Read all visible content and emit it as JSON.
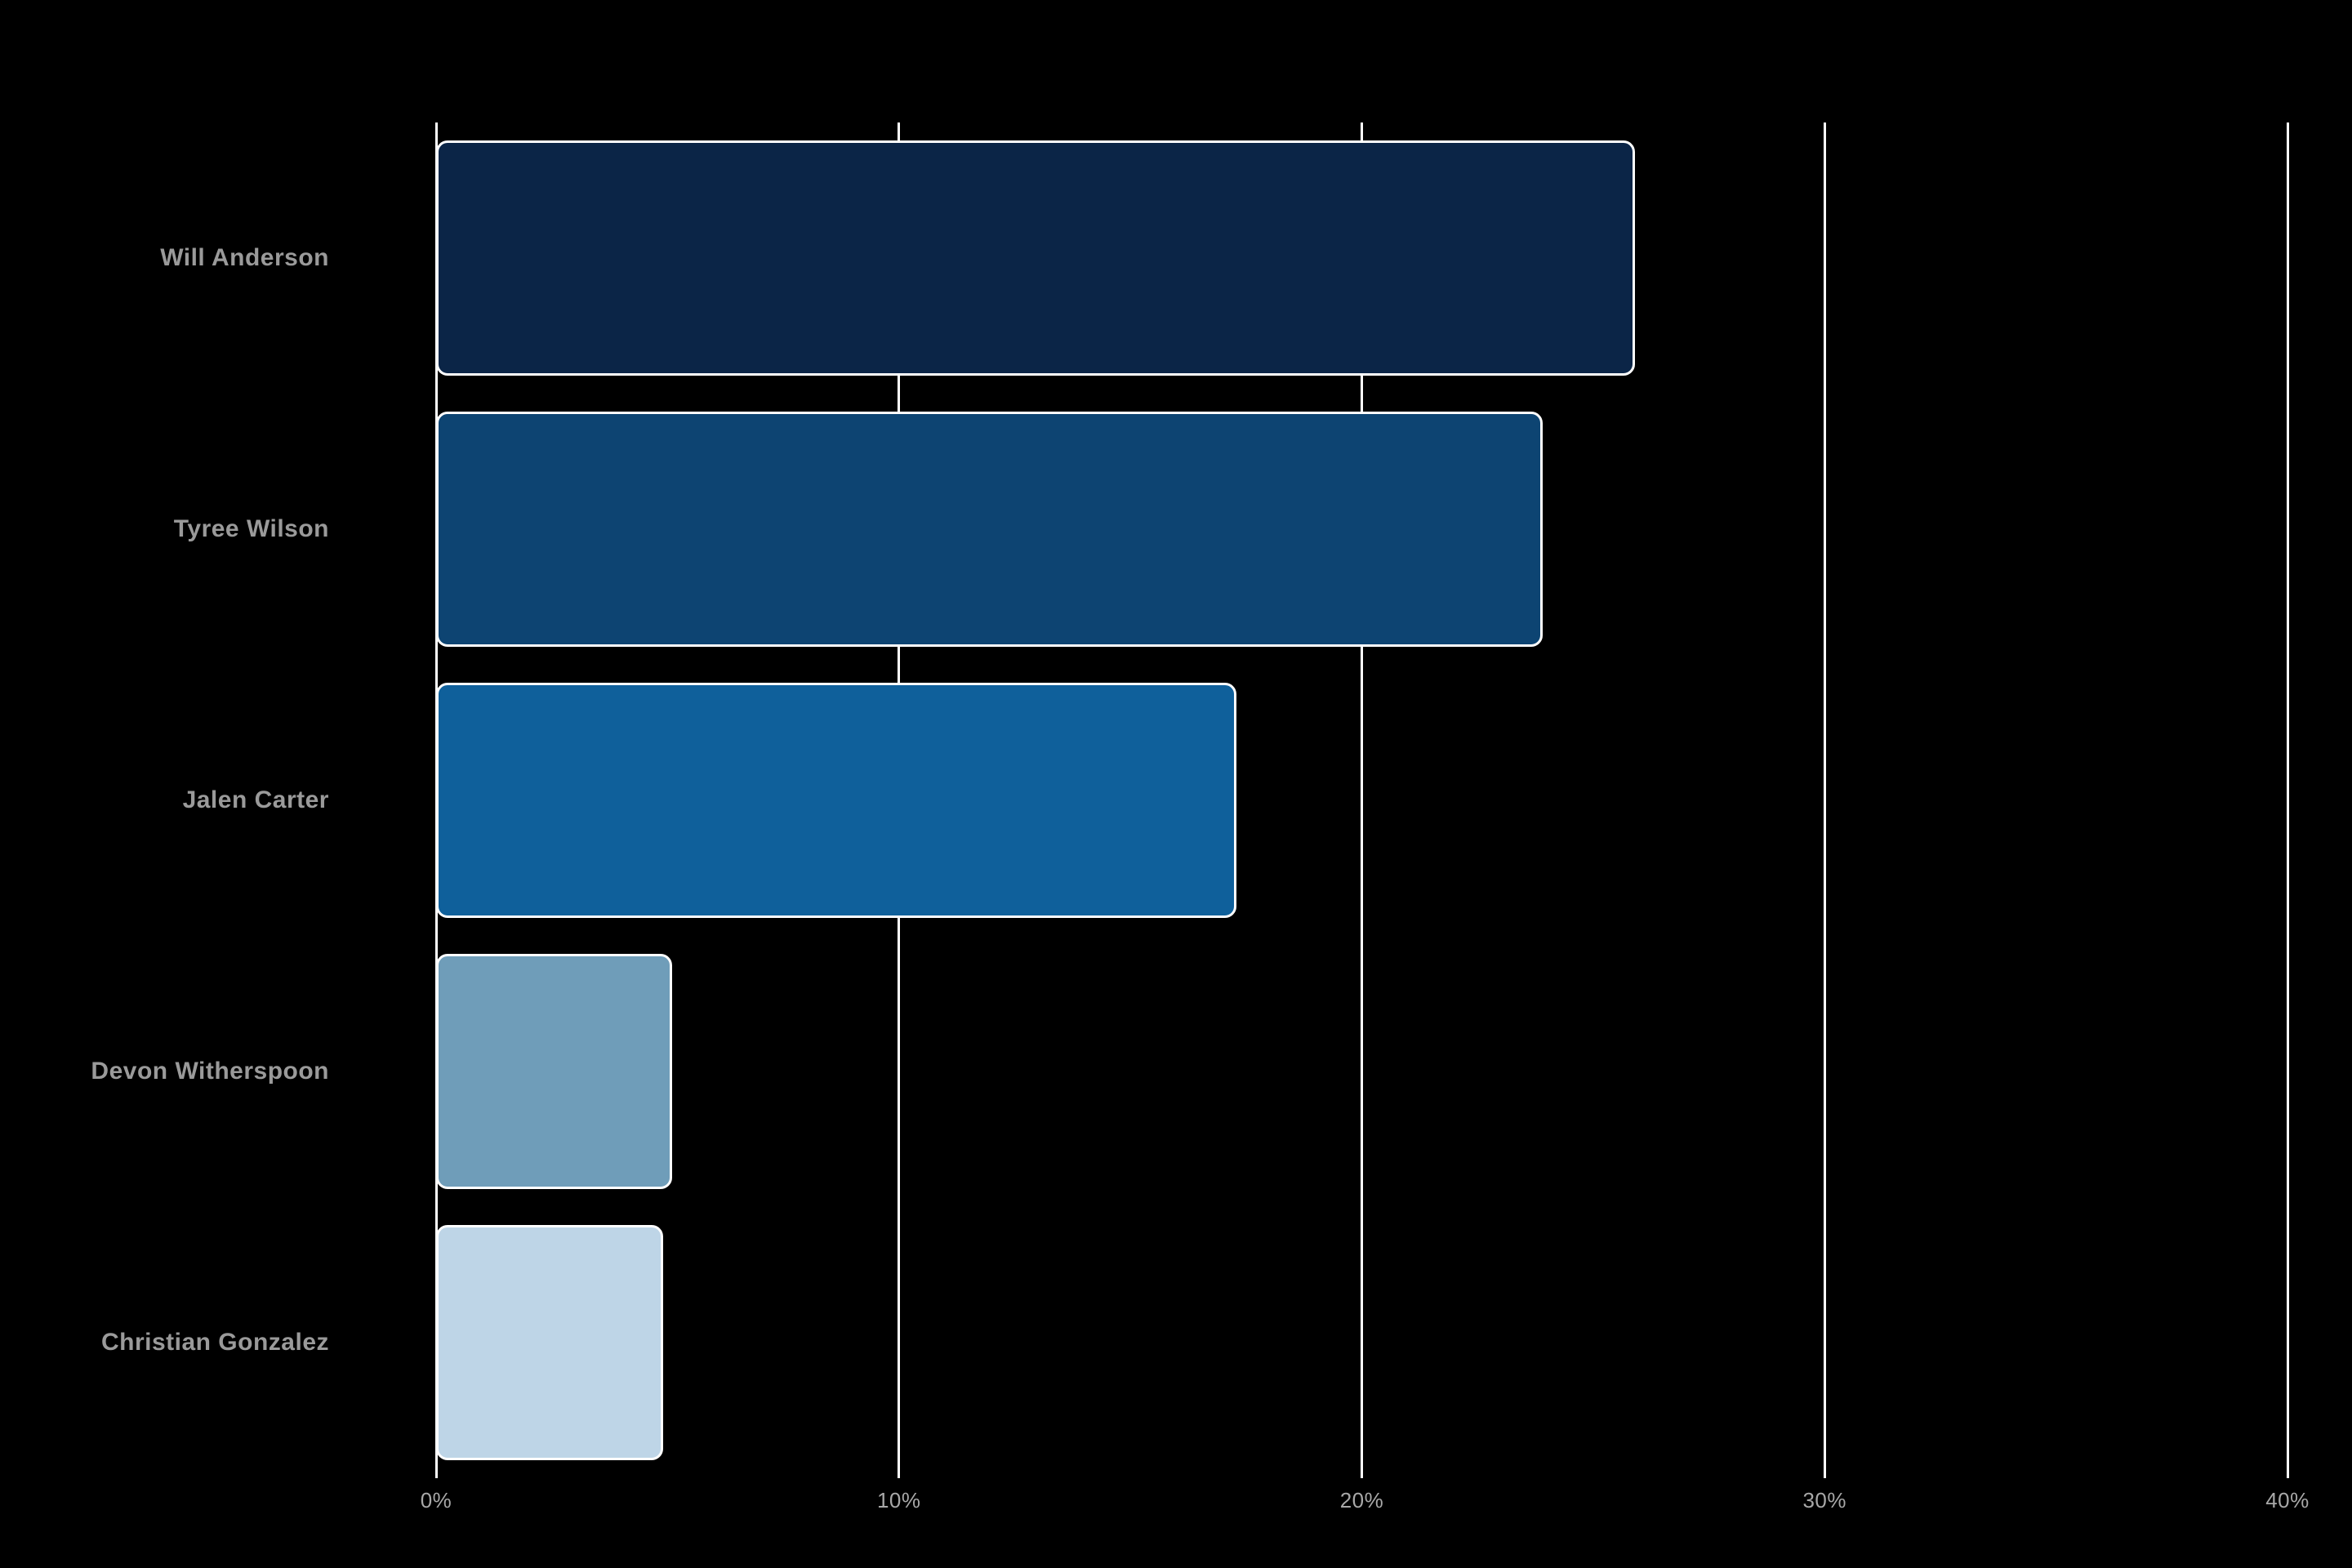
{
  "background": "#000000",
  "chart_data": {
    "type": "bar",
    "orientation": "horizontal",
    "title": "",
    "categories": [
      "Will Anderson",
      "Tyree Wilson",
      "Jalen Carter",
      "Devon Witherspoon",
      "Christian Gonzalez"
    ],
    "values": [
      25.9,
      23.9,
      17.3,
      5.1,
      4.9
    ],
    "unit": "%",
    "xlabel": "",
    "ylabel": "",
    "xlim": [
      0,
      40
    ],
    "x_ticks": [
      0,
      10,
      20,
      30,
      40
    ],
    "x_tick_labels": [
      "0%",
      "10%",
      "20%",
      "30%",
      "40%"
    ],
    "grid": true,
    "legend": "none",
    "bar_colors": [
      "#0b2547",
      "#0d4472",
      "#0f609b",
      "#6f9db9",
      "#bed5e7"
    ],
    "bar_border_color": "#ffffff",
    "gridline_color": "#ffffff",
    "label_color": "#9a9a9a",
    "tick_color": "#a8a8a8"
  }
}
